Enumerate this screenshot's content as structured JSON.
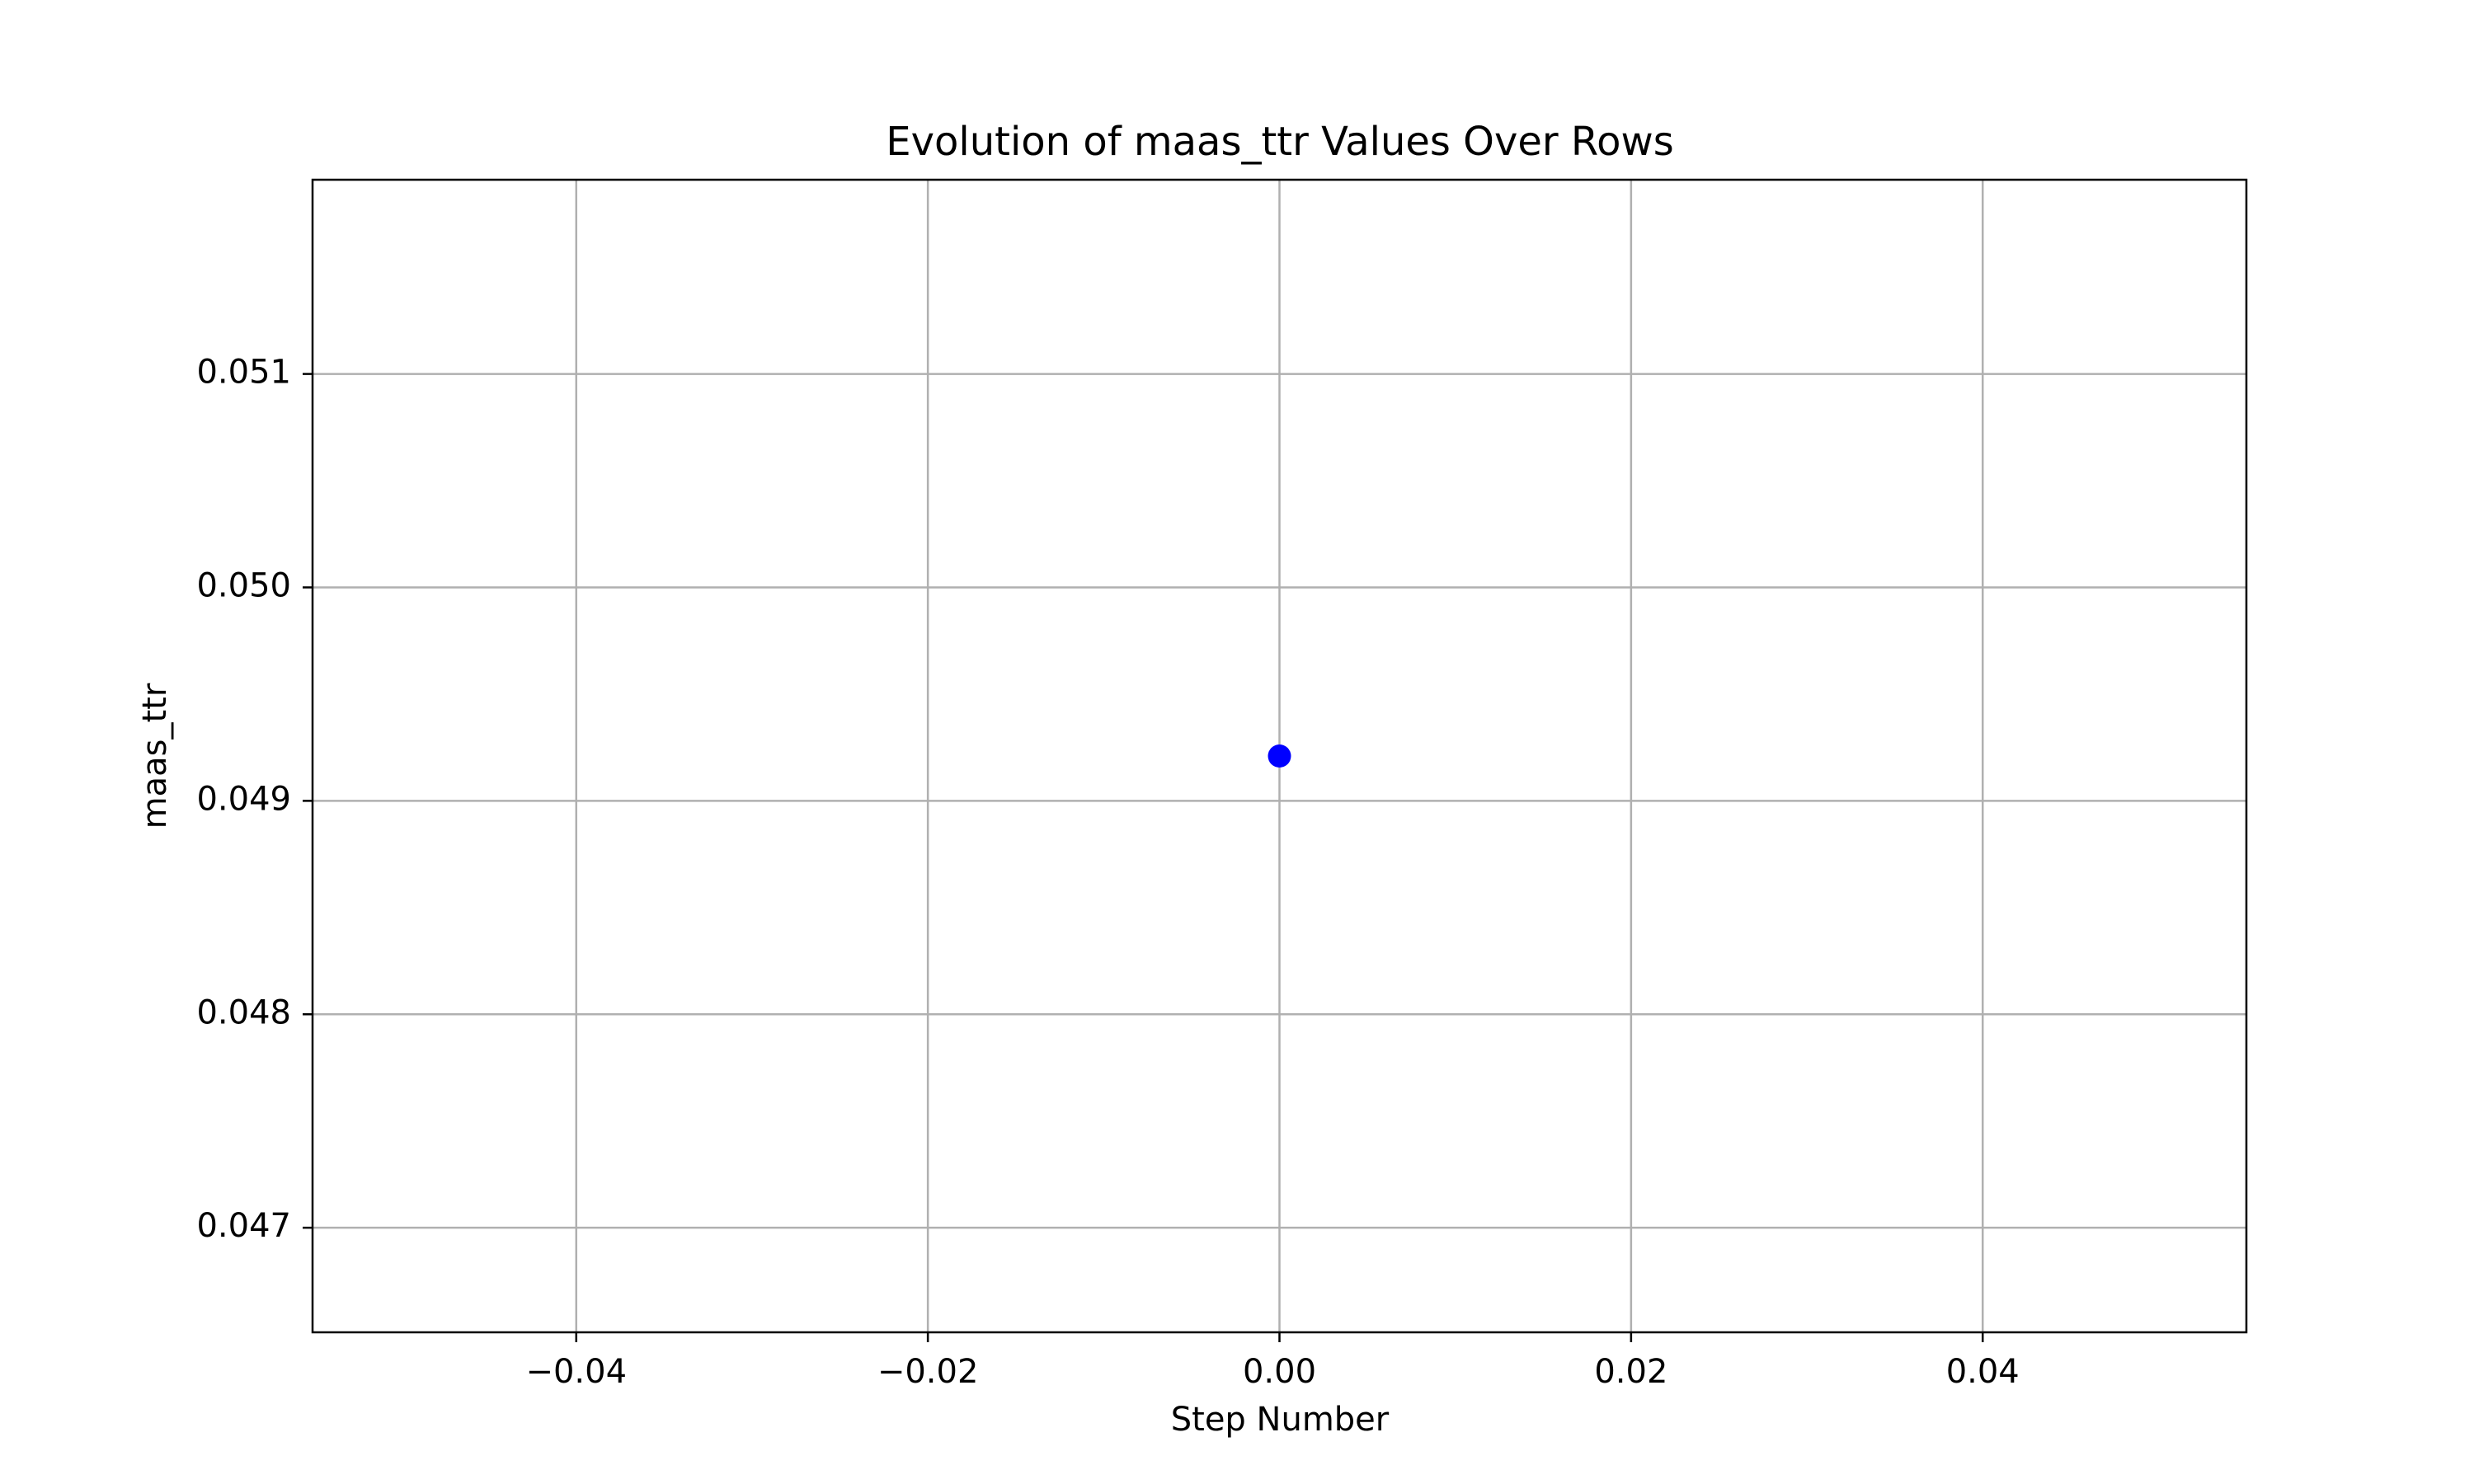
{
  "chart_data": {
    "type": "scatter",
    "title": "Evolution of maas_ttr Values Over Rows",
    "xlabel": "Step Number",
    "ylabel": "maas_ttr",
    "xlim": [
      -0.055,
      0.055
    ],
    "ylim": [
      0.04651,
      0.05191
    ],
    "x_ticks": [
      -0.04,
      -0.02,
      0.0,
      0.02,
      0.04
    ],
    "x_tick_labels": [
      "−0.04",
      "−0.02",
      "0.00",
      "0.02",
      "0.04"
    ],
    "y_ticks": [
      0.047,
      0.048,
      0.049,
      0.05,
      0.051
    ],
    "y_tick_labels": [
      "0.047",
      "0.048",
      "0.049",
      "0.050",
      "0.051"
    ],
    "grid": true,
    "series": [
      {
        "name": "maas_ttr",
        "x": [
          0.0
        ],
        "y": [
          0.04921
        ],
        "color": "#0000ff"
      }
    ],
    "colors": {
      "grid": "#b0b0b0",
      "axes": "#000000",
      "point": "#0000ff",
      "background": "#ffffff"
    }
  }
}
